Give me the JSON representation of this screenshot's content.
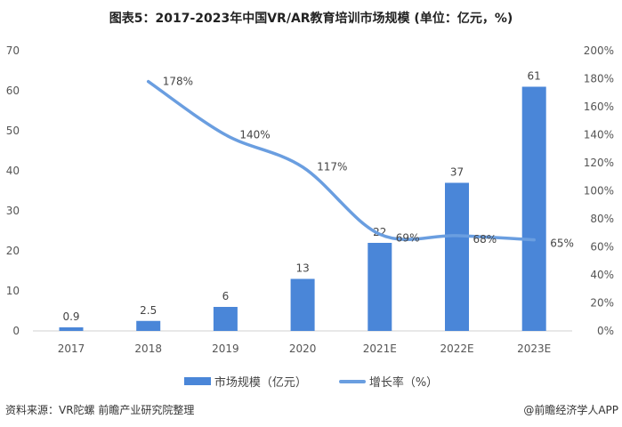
{
  "title": "图表5：2017-2023年中国VR/AR教育培训市场规模 (单位：亿元，%)",
  "footer": {
    "source": "资料来源：VR陀螺 前瞻产业研究院整理",
    "brand": "@前瞻经济学人APP"
  },
  "colors": {
    "bar": "#4a86d8",
    "line": "#6a9ee0"
  },
  "chart_data": {
    "type": "bar+line",
    "title": "图表5：2017-2023年中国VR/AR教育培训市场规模 (单位：亿元，%)",
    "categories": [
      "2017",
      "2018",
      "2019",
      "2020",
      "2021E",
      "2022E",
      "2023E"
    ],
    "series": [
      {
        "name": "市场规模（亿元）",
        "type": "bar",
        "axis": "left",
        "values": [
          0.9,
          2.5,
          6,
          13,
          22,
          37,
          61
        ],
        "labels": [
          "0.9",
          "2.5",
          "6",
          "13",
          "22",
          "37",
          "61"
        ]
      },
      {
        "name": "增长率（%）",
        "type": "line",
        "axis": "right",
        "values": [
          null,
          178,
          140,
          117,
          69,
          68,
          65
        ],
        "labels": [
          "",
          "178%",
          "140%",
          "117%",
          "69%",
          "68%",
          "65%"
        ]
      }
    ],
    "left_axis": {
      "range": [
        0,
        70
      ],
      "ticks": [
        "0",
        "10",
        "20",
        "30",
        "40",
        "50",
        "60",
        "70"
      ]
    },
    "right_axis": {
      "range": [
        0,
        200
      ],
      "ticks": [
        "0%",
        "20%",
        "40%",
        "60%",
        "80%",
        "100%",
        "120%",
        "140%",
        "160%",
        "180%",
        "200%"
      ]
    },
    "grid": false,
    "legend": "bottom"
  }
}
